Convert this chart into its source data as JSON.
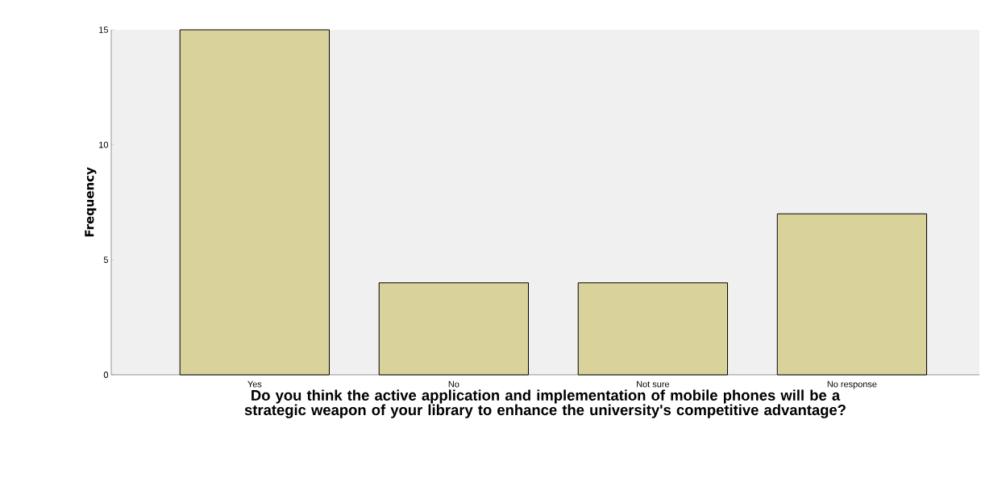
{
  "chart_data": {
    "type": "bar",
    "xlabel": "Do you think the active application and implementation of mobile phones will be a strategic weapon of your library to enhance the university's competitive advantage?",
    "ylabel": "Frequency",
    "categories": [
      "Yes",
      "No",
      "Not sure",
      "No response"
    ],
    "values": [
      15,
      4,
      4,
      7
    ],
    "color": "#d9d39b",
    "ylim": [
      0,
      15
    ],
    "yticks": [
      0,
      5,
      10,
      15
    ],
    "grid": false
  }
}
